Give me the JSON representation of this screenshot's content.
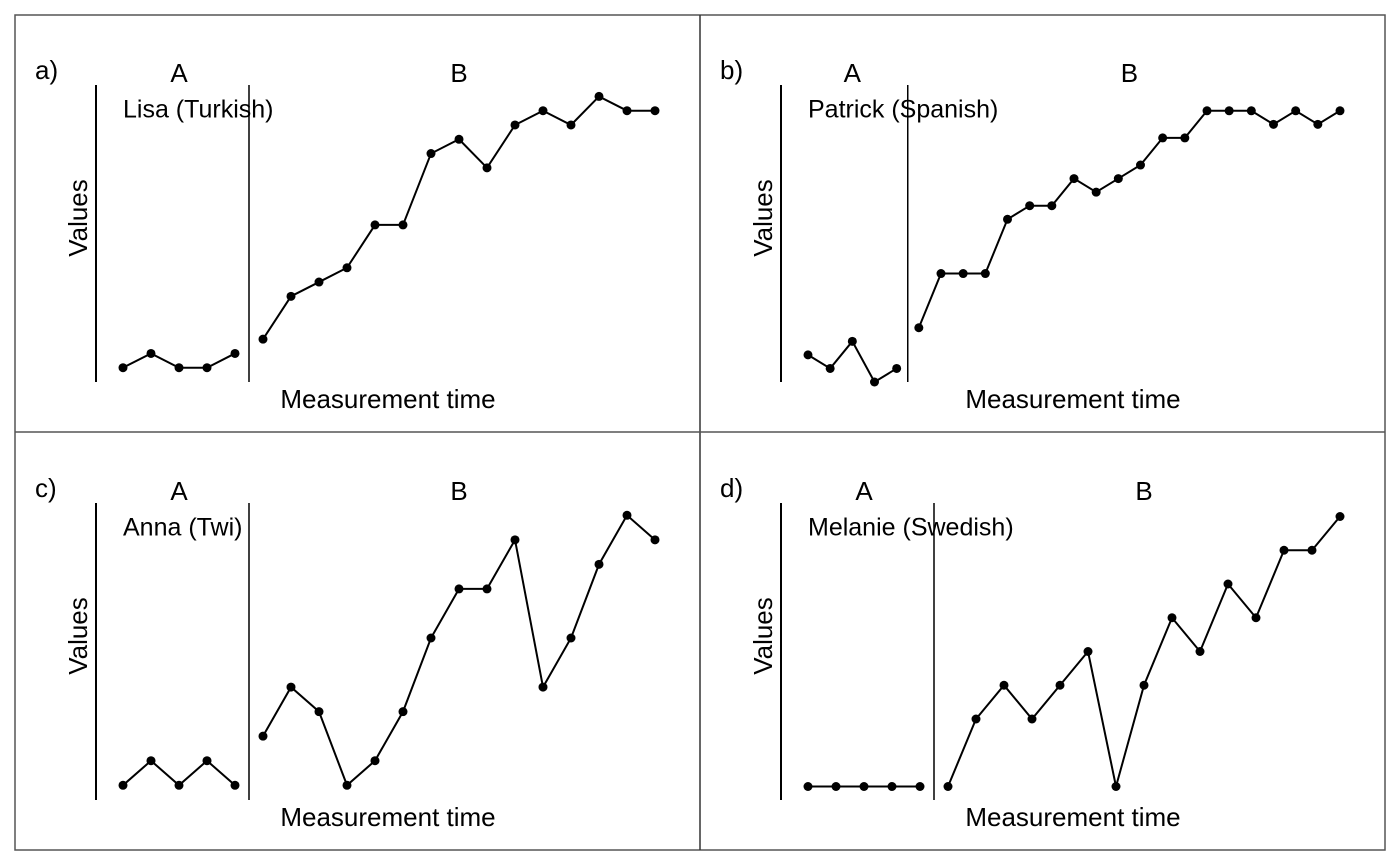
{
  "chart_data": [
    {
      "type": "line",
      "title": "a)",
      "subtitle": "Lisa (Turkish)",
      "x_label": "Measurement time",
      "y_label": "Values",
      "ylim": [
        0,
        20.8
      ],
      "series": [
        {
          "name": "A",
          "color": "#000000",
          "values": [
            1,
            2,
            1,
            1,
            2
          ]
        },
        {
          "name": "B",
          "color": "#000000",
          "values": [
            3,
            6,
            7,
            8,
            11,
            11,
            16,
            17,
            15,
            18,
            19,
            18,
            20,
            19,
            19
          ]
        }
      ]
    },
    {
      "type": "line",
      "title": "b)",
      "subtitle": "Patrick (Spanish)",
      "x_label": "Measurement time",
      "y_label": "Values",
      "ylim": [
        0,
        21.9
      ],
      "series": [
        {
          "name": "A",
          "color": "#000000",
          "values": [
            2,
            1,
            3,
            0,
            1
          ]
        },
        {
          "name": "B",
          "color": "#000000",
          "values": [
            4,
            8,
            8,
            8,
            12,
            13,
            13,
            15,
            14,
            15,
            16,
            18,
            18,
            20,
            20,
            20,
            19,
            20,
            19,
            20
          ]
        }
      ]
    },
    {
      "type": "line",
      "title": "c)",
      "subtitle": "Anna (Twi)",
      "x_label": "Measurement time",
      "y_label": "Values",
      "ylim": [
        0.4,
        12.5
      ],
      "series": [
        {
          "name": "A",
          "color": "#000000",
          "values": [
            1,
            2,
            1,
            2,
            1
          ]
        },
        {
          "name": "B",
          "color": "#000000",
          "values": [
            3,
            5,
            4,
            1,
            2,
            4,
            7,
            9,
            9,
            11,
            5,
            7,
            10,
            12,
            11
          ]
        }
      ]
    },
    {
      "type": "line",
      "title": "d)",
      "subtitle": "Melanie (Swedish)",
      "x_label": "Measurement time",
      "y_label": "Values",
      "ylim": [
        -0.4,
        8.4
      ],
      "series": [
        {
          "name": "A",
          "color": "#000000",
          "values": [
            0,
            0,
            0,
            0,
            0
          ]
        },
        {
          "name": "B",
          "color": "#000000",
          "values": [
            0,
            2,
            3,
            2,
            3,
            4,
            0,
            3,
            5,
            4,
            6,
            5,
            7,
            7,
            8
          ]
        }
      ]
    }
  ]
}
